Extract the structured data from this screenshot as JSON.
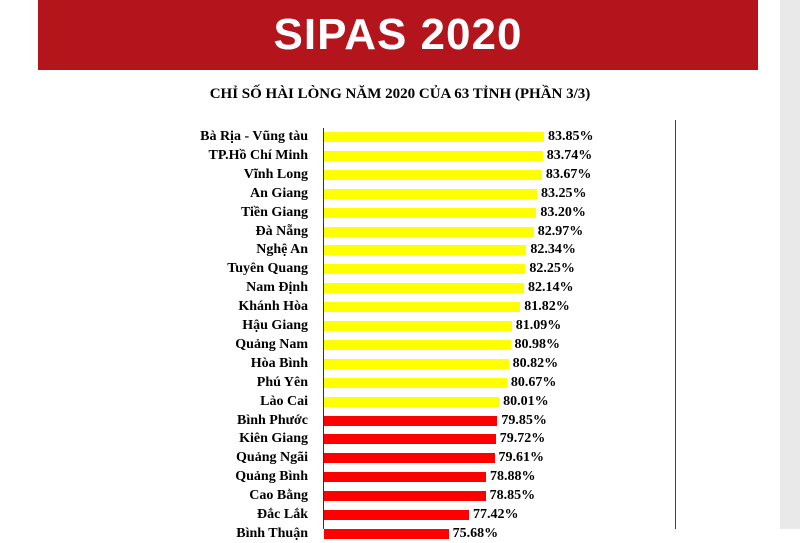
{
  "banner": {
    "title": "SIPAS 2020"
  },
  "chart_data": {
    "type": "bar",
    "orientation": "horizontal",
    "title": "CHỈ SỐ HÀI LÒNG NĂM 2020 CỦA 63 TỈNH (PHẦN 3/3)",
    "categories": [
      "Bà Rịa - Vũng tàu",
      "TP.Hồ Chí Minh",
      "Vĩnh Long",
      "An Giang",
      "Tiền Giang",
      "Đà Nẵng",
      "Nghệ An",
      "Tuyên Quang",
      "Nam Định",
      "Khánh Hòa",
      "Hậu Giang",
      "Quảng Nam",
      "Hòa Bình",
      "Phú Yên",
      "Lào Cai",
      "Bình Phước",
      "Kiên Giang",
      "Quảng Ngãi",
      "Quảng Bình",
      "Cao Bằng",
      "Đắc Lắk",
      "Bình Thuận"
    ],
    "values": [
      83.85,
      83.74,
      83.67,
      83.25,
      83.2,
      82.97,
      82.34,
      82.25,
      82.14,
      81.82,
      81.09,
      80.98,
      80.82,
      80.67,
      80.01,
      79.85,
      79.72,
      79.61,
      78.88,
      78.85,
      77.42,
      75.68
    ],
    "labels": [
      "83.85%",
      "83.74%",
      "83.67%",
      "83.25%",
      "83.20%",
      "82.97%",
      "82.34%",
      "82.25%",
      "82.14%",
      "81.82%",
      "81.09%",
      "80.98%",
      "80.82%",
      "80.67%",
      "80.01%",
      "79.85%",
      "79.72%",
      "79.61%",
      "78.88%",
      "78.85%",
      "77.42%",
      "75.68%"
    ],
    "colors": {
      "high": "#ffff00",
      "low": "#ff0000",
      "threshold": 80
    },
    "xlim": [
      0,
      100
    ],
    "grid": false,
    "legend": "none"
  }
}
